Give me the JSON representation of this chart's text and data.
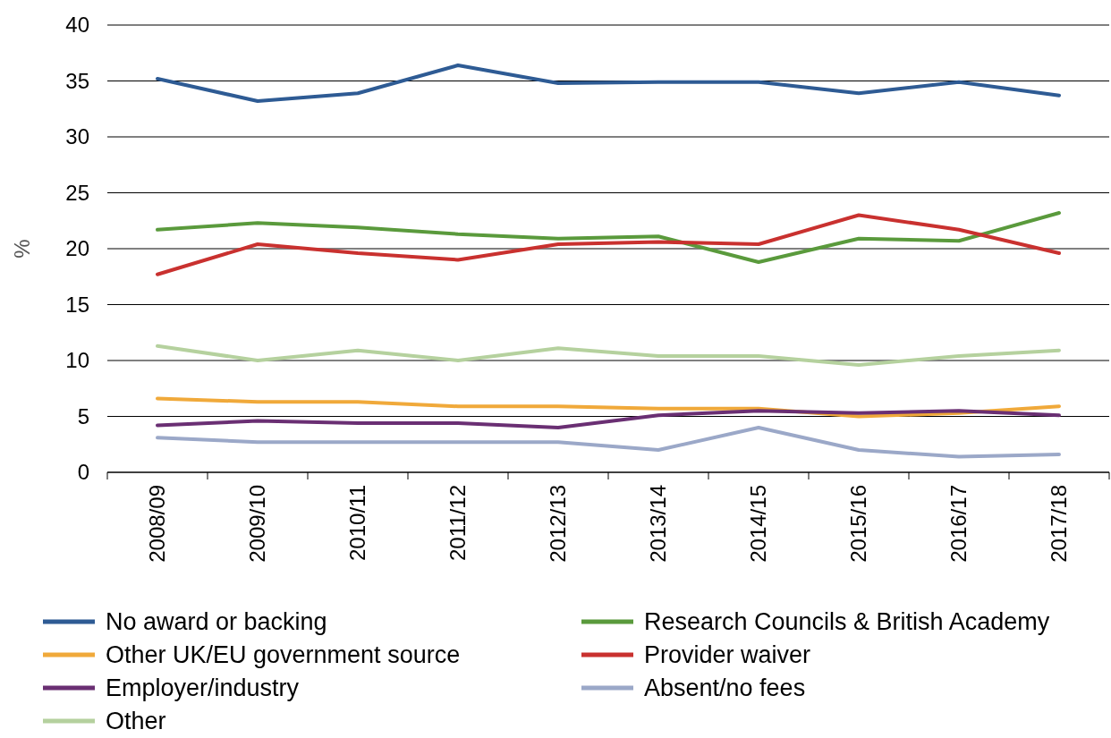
{
  "chart_data": {
    "type": "line",
    "ylabel": "%",
    "categories": [
      "2008/09",
      "2009/10",
      "2010/11",
      "2011/12",
      "2012/13",
      "2013/14",
      "2014/15",
      "2015/16",
      "2016/17",
      "2017/18"
    ],
    "series": [
      {
        "name": "No award or backing",
        "color": "#2e5b94",
        "values": [
          35.2,
          33.2,
          33.9,
          36.4,
          34.8,
          34.9,
          34.9,
          33.9,
          34.9,
          33.7
        ]
      },
      {
        "name": "Research Councils & British Academy",
        "color": "#5a9a3c",
        "values": [
          21.7,
          22.3,
          21.9,
          21.3,
          20.9,
          21.1,
          18.8,
          20.9,
          20.7,
          23.2
        ]
      },
      {
        "name": "Other UK/EU government source",
        "color": "#f0a93a",
        "values": [
          6.6,
          6.3,
          6.3,
          5.9,
          5.9,
          5.7,
          5.7,
          5.0,
          5.3,
          5.9
        ]
      },
      {
        "name": "Provider waiver",
        "color": "#c9312f",
        "values": [
          17.7,
          20.4,
          19.6,
          19.0,
          20.4,
          20.6,
          20.4,
          23.0,
          21.7,
          19.6
        ]
      },
      {
        "name": "Employer/industry",
        "color": "#6a2f73",
        "values": [
          4.2,
          4.6,
          4.4,
          4.4,
          4.0,
          5.1,
          5.5,
          5.3,
          5.5,
          5.1
        ]
      },
      {
        "name": "Absent/no fees",
        "color": "#9ba8c8",
        "values": [
          3.1,
          2.7,
          2.7,
          2.7,
          2.7,
          2.0,
          4.0,
          2.0,
          1.4,
          1.6
        ]
      },
      {
        "name": "Other",
        "color": "#b5d19e",
        "values": [
          11.3,
          10.0,
          10.9,
          10.0,
          11.1,
          10.4,
          10.4,
          9.6,
          10.4,
          10.9
        ]
      }
    ],
    "ylim": [
      0,
      40
    ],
    "yticks": [
      0,
      5,
      10,
      15,
      20,
      25,
      30,
      35,
      40
    ],
    "grid": "y",
    "legend": "bottom",
    "marker": "none",
    "line_style": "solid"
  }
}
